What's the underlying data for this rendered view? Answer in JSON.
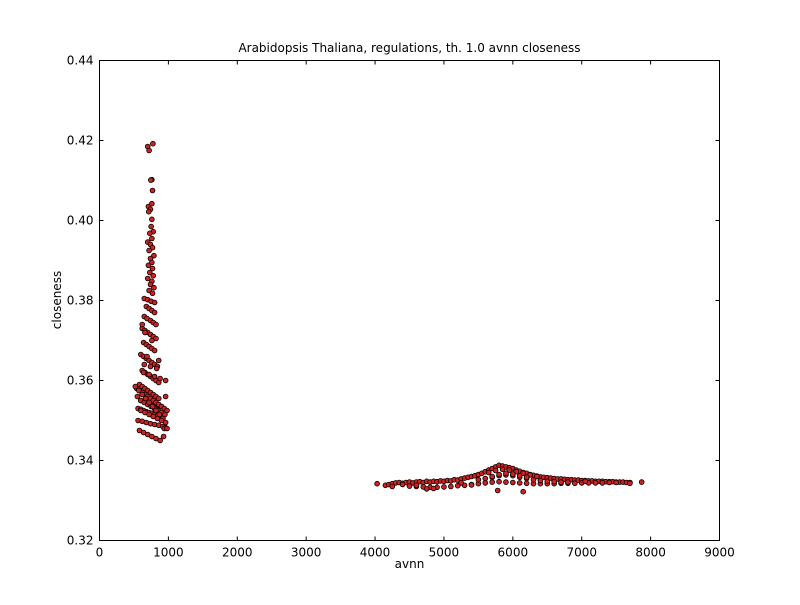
{
  "chart_data": {
    "type": "scatter",
    "title": "Arabidopsis Thaliana, regulations, th. 1.0 avnn closeness",
    "xlabel": "avnn",
    "ylabel": "closeness",
    "xlim": [
      0,
      9000
    ],
    "ylim": [
      0.32,
      0.44
    ],
    "x_ticks": [
      0,
      1000,
      2000,
      3000,
      4000,
      5000,
      6000,
      7000,
      8000,
      9000
    ],
    "x_tick_labels": [
      "0",
      "1000",
      "2000",
      "3000",
      "4000",
      "5000",
      "6000",
      "7000",
      "8000",
      "9000"
    ],
    "y_ticks": [
      0.32,
      0.34,
      0.36,
      0.38,
      0.4,
      0.42,
      0.44
    ],
    "y_tick_labels": [
      "0.32",
      "0.34",
      "0.36",
      "0.38",
      "0.40",
      "0.42",
      "0.44"
    ],
    "grid": false,
    "legend": "none",
    "marker_face_color": "#cc2222",
    "marker_edge_color": "#000000",
    "series": [
      {
        "x": [
          775,
          700,
          720,
          760,
          745,
          770,
          710,
          760,
          740,
          715,
          760,
          750,
          780,
          730,
          760,
          700,
          740,
          770,
          720,
          790,
          740,
          760,
          710,
          770,
          730,
          780,
          700,
          760,
          740,
          790,
          720,
          770,
          650,
          700,
          750,
          800,
          680,
          720,
          760,
          800,
          650,
          690,
          740,
          780,
          820,
          620,
          660,
          700,
          740,
          780,
          820,
          640,
          680,
          720,
          760,
          800,
          600,
          640,
          680,
          720,
          760,
          800,
          840,
          620,
          660,
          700,
          740,
          780,
          820,
          860,
          580,
          620,
          660,
          700,
          740,
          780,
          820,
          860,
          600,
          650,
          700,
          750,
          800,
          850,
          900,
          560,
          600,
          640,
          680,
          720,
          760,
          800,
          840,
          880,
          920,
          560,
          620,
          680,
          740,
          800,
          860,
          920,
          960,
          540,
          580,
          620,
          660,
          700,
          740,
          780,
          820,
          860,
          900,
          940,
          980,
          550,
          600,
          650,
          700,
          750,
          800,
          850,
          900,
          950,
          520,
          570,
          620,
          670,
          720,
          770,
          820,
          870,
          920,
          960,
          580,
          640,
          700,
          760,
          820,
          880,
          940,
          600,
          660,
          720,
          780,
          840,
          900,
          640,
          720,
          800,
          880,
          960,
          650,
          740,
          830,
          960,
          690,
          860,
          760,
          660,
          620,
          980,
          930
        ],
        "y": [
          0.4192,
          0.4185,
          0.4175,
          0.4102,
          0.4101,
          0.4075,
          0.4035,
          0.4042,
          0.4028,
          0.4022,
          0.4003,
          0.3985,
          0.3972,
          0.3968,
          0.3955,
          0.3946,
          0.394,
          0.3932,
          0.3925,
          0.3912,
          0.3905,
          0.3895,
          0.3888,
          0.388,
          0.387,
          0.3862,
          0.3855,
          0.3848,
          0.384,
          0.3832,
          0.3825,
          0.3818,
          0.3805,
          0.3802,
          0.3798,
          0.3795,
          0.3785,
          0.378,
          0.3775,
          0.377,
          0.376,
          0.3755,
          0.375,
          0.3745,
          0.374,
          0.373,
          0.3725,
          0.372,
          0.3715,
          0.371,
          0.3705,
          0.3695,
          0.369,
          0.3685,
          0.368,
          0.3675,
          0.3665,
          0.366,
          0.3655,
          0.365,
          0.3645,
          0.364,
          0.3635,
          0.3625,
          0.362,
          0.3615,
          0.361,
          0.3605,
          0.36,
          0.3595,
          0.359,
          0.3585,
          0.358,
          0.3575,
          0.357,
          0.3565,
          0.356,
          0.3555,
          0.355,
          0.3548,
          0.3545,
          0.3542,
          0.354,
          0.3538,
          0.3535,
          0.353,
          0.3528,
          0.3525,
          0.3522,
          0.352,
          0.3518,
          0.3515,
          0.3512,
          0.351,
          0.3508,
          0.35,
          0.3498,
          0.3495,
          0.3492,
          0.349,
          0.3488,
          0.3485,
          0.3482,
          0.358,
          0.3575,
          0.357,
          0.3565,
          0.356,
          0.3555,
          0.355,
          0.3545,
          0.354,
          0.3535,
          0.353,
          0.3525,
          0.356,
          0.355,
          0.3545,
          0.354,
          0.3535,
          0.353,
          0.3525,
          0.352,
          0.3515,
          0.3585,
          0.3575,
          0.3565,
          0.3555,
          0.3545,
          0.3535,
          0.3525,
          0.3515,
          0.3505,
          0.3495,
          0.3475,
          0.347,
          0.3465,
          0.346,
          0.3455,
          0.345,
          0.348,
          0.3525,
          0.352,
          0.3515,
          0.351,
          0.3505,
          0.35,
          0.362,
          0.3615,
          0.361,
          0.3605,
          0.36,
          0.364,
          0.3635,
          0.363,
          0.356,
          0.366,
          0.365,
          0.37,
          0.372,
          0.374,
          0.348,
          0.346
        ]
      },
      {
        "x": [
          4030,
          4150,
          4200,
          4250,
          4300,
          4350,
          4400,
          4450,
          4500,
          4550,
          4600,
          4650,
          4700,
          4750,
          4800,
          4850,
          4900,
          4950,
          5000,
          5050,
          5100,
          5150,
          5200,
          5250,
          5300,
          5350,
          5400,
          5450,
          5500,
          5550,
          5600,
          5650,
          5700,
          5750,
          5800,
          5850,
          5900,
          5950,
          6000,
          6050,
          6100,
          6150,
          6200,
          6250,
          6300,
          6350,
          6400,
          6450,
          6500,
          6550,
          6600,
          6650,
          6700,
          6750,
          6800,
          6850,
          6900,
          6950,
          7000,
          7050,
          7100,
          7150,
          7200,
          7250,
          7300,
          7350,
          7400,
          7450,
          7500,
          7550,
          7600,
          7650,
          7700,
          7870,
          4500,
          4600,
          4700,
          4800,
          4900,
          5000,
          5100,
          5200,
          5300,
          5400,
          5500,
          5600,
          5700,
          5800,
          5900,
          6000,
          6100,
          6200,
          6300,
          6400,
          6500,
          6600,
          6700,
          6800,
          6900,
          7000,
          7100,
          7200,
          7300,
          7400,
          7500,
          5500,
          5600,
          5700,
          5800,
          5900,
          6000,
          6100,
          6200,
          6300,
          6400,
          6500,
          6600,
          6700,
          6800,
          5650,
          5750,
          5850,
          5950,
          6050,
          6150,
          6250,
          6350,
          5700,
          5800,
          5900,
          6000,
          6100,
          6200,
          4250,
          4750,
          4850,
          5780,
          6150,
          4400,
          4600,
          5250,
          5400,
          7050,
          7700
        ],
        "y": [
          0.3342,
          0.3338,
          0.334,
          0.3342,
          0.3344,
          0.3345,
          0.3343,
          0.3345,
          0.3346,
          0.3344,
          0.3346,
          0.3347,
          0.3345,
          0.3348,
          0.3346,
          0.3348,
          0.3347,
          0.3349,
          0.3348,
          0.335,
          0.3349,
          0.3352,
          0.3351,
          0.3354,
          0.3356,
          0.3358,
          0.336,
          0.3362,
          0.3365,
          0.3368,
          0.3372,
          0.3376,
          0.338,
          0.3384,
          0.3388,
          0.3386,
          0.3384,
          0.3382,
          0.338,
          0.3376,
          0.3373,
          0.337,
          0.3368,
          0.3365,
          0.3363,
          0.3361,
          0.3359,
          0.3358,
          0.3357,
          0.3356,
          0.3355,
          0.3354,
          0.3354,
          0.3353,
          0.3352,
          0.3352,
          0.3351,
          0.3351,
          0.335,
          0.335,
          0.3349,
          0.3349,
          0.3348,
          0.3348,
          0.3348,
          0.3347,
          0.3347,
          0.3347,
          0.3346,
          0.3346,
          0.3346,
          0.3345,
          0.3345,
          0.3346,
          0.3336,
          0.3335,
          0.3334,
          0.3333,
          0.3333,
          0.3334,
          0.3335,
          0.3337,
          0.3338,
          0.334,
          0.3342,
          0.3344,
          0.3346,
          0.3347,
          0.3346,
          0.3345,
          0.3344,
          0.3343,
          0.3342,
          0.3342,
          0.3342,
          0.3342,
          0.3343,
          0.3343,
          0.3343,
          0.3344,
          0.3344,
          0.3344,
          0.3344,
          0.3345,
          0.3345,
          0.3352,
          0.3355,
          0.3358,
          0.3362,
          0.3364,
          0.3362,
          0.3358,
          0.3355,
          0.3352,
          0.335,
          0.3348,
          0.3347,
          0.3346,
          0.3346,
          0.337,
          0.3375,
          0.3378,
          0.3376,
          0.3372,
          0.3368,
          0.3364,
          0.336,
          0.336,
          0.3365,
          0.3368,
          0.3366,
          0.3362,
          0.3358,
          0.3335,
          0.3329,
          0.333,
          0.3325,
          0.3322,
          0.334,
          0.3338,
          0.3344,
          0.3339,
          0.3348,
          0.3343
        ]
      }
    ]
  }
}
